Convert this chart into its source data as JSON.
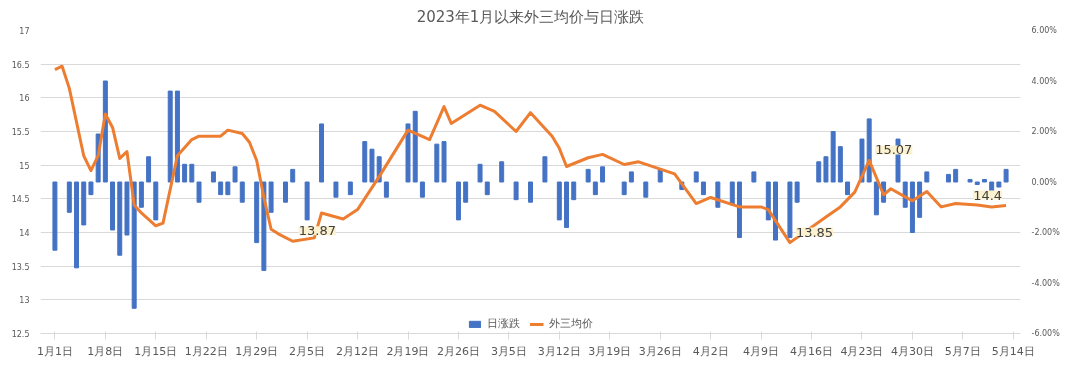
{
  "chart_data": {
    "type": "line",
    "title": "2023年1月以来外三均价与日涨跌",
    "xlim": [
      "2022-12-30",
      "2023-05-15"
    ],
    "xticks": [
      {
        "value": "2023-01-01",
        "label": "1月1日"
      },
      {
        "value": "2023-01-08",
        "label": "1月8日"
      },
      {
        "value": "2023-01-15",
        "label": "1月15日"
      },
      {
        "value": "2023-01-22",
        "label": "1月22日"
      },
      {
        "value": "2023-01-29",
        "label": "1月29日"
      },
      {
        "value": "2023-02-05",
        "label": "2月5日"
      },
      {
        "value": "2023-02-12",
        "label": "2月12日"
      },
      {
        "value": "2023-02-19",
        "label": "2月19日"
      },
      {
        "value": "2023-02-26",
        "label": "2月26日"
      },
      {
        "value": "2023-03-05",
        "label": "3月5日"
      },
      {
        "value": "2023-03-12",
        "label": "3月12日"
      },
      {
        "value": "2023-03-19",
        "label": "3月19日"
      },
      {
        "value": "2023-03-26",
        "label": "3月26日"
      },
      {
        "value": "2023-04-02",
        "label": "4月2日"
      },
      {
        "value": "2023-04-09",
        "label": "4月9日"
      },
      {
        "value": "2023-04-16",
        "label": "4月16日"
      },
      {
        "value": "2023-04-23",
        "label": "4月23日"
      },
      {
        "value": "2023-04-30",
        "label": "4月30日"
      },
      {
        "value": "2023-05-07",
        "label": "5月7日"
      },
      {
        "value": "2023-05-14",
        "label": "5月14日"
      }
    ],
    "ylim": [
      12.5,
      17
    ],
    "yticks": [
      12.5,
      13,
      13.5,
      14,
      14.5,
      15,
      15.5,
      16,
      16.5,
      17
    ],
    "y2lim": [
      -6,
      6
    ],
    "y2ticks": [
      {
        "value": -6,
        "label": "-6.00%"
      },
      {
        "value": -4,
        "label": "-4.00%"
      },
      {
        "value": -2,
        "label": "-2.00%"
      },
      {
        "value": 0,
        "label": "0.00%"
      },
      {
        "value": 2,
        "label": "2.00%"
      },
      {
        "value": 4,
        "label": "4.00%"
      },
      {
        "value": 6,
        "label": "6.00%"
      }
    ],
    "grid": "y",
    "legend": "bottom",
    "series": [
      {
        "name": "日涨跌",
        "type": "bar",
        "axis": "y2",
        "color": "#4472c4",
        "x": [
          "2023-01-01",
          "2023-01-03",
          "2023-01-04",
          "2023-01-05",
          "2023-01-06",
          "2023-01-07",
          "2023-01-08",
          "2023-01-09",
          "2023-01-10",
          "2023-01-11",
          "2023-01-12",
          "2023-01-13",
          "2023-01-14",
          "2023-01-15",
          "2023-01-17",
          "2023-01-18",
          "2023-01-19",
          "2023-01-20",
          "2023-01-21",
          "2023-01-23",
          "2023-01-24",
          "2023-01-25",
          "2023-01-26",
          "2023-01-27",
          "2023-01-29",
          "2023-01-30",
          "2023-01-31",
          "2023-02-02",
          "2023-02-03",
          "2023-02-05",
          "2023-02-07",
          "2023-02-09",
          "2023-02-11",
          "2023-02-13",
          "2023-02-14",
          "2023-02-15",
          "2023-02-16",
          "2023-02-19",
          "2023-02-20",
          "2023-02-21",
          "2023-02-23",
          "2023-02-24",
          "2023-02-26",
          "2023-02-27",
          "2023-03-01",
          "2023-03-02",
          "2023-03-04",
          "2023-03-06",
          "2023-03-08",
          "2023-03-10",
          "2023-03-12",
          "2023-03-13",
          "2023-03-14",
          "2023-03-16",
          "2023-03-17",
          "2023-03-18",
          "2023-03-21",
          "2023-03-22",
          "2023-03-24",
          "2023-03-26",
          "2023-03-29",
          "2023-03-31",
          "2023-04-01",
          "2023-04-03",
          "2023-04-05",
          "2023-04-06",
          "2023-04-08",
          "2023-04-10",
          "2023-04-11",
          "2023-04-13",
          "2023-04-14",
          "2023-04-17",
          "2023-04-18",
          "2023-04-19",
          "2023-04-20",
          "2023-04-21",
          "2023-04-23",
          "2023-04-24",
          "2023-04-25",
          "2023-04-26",
          "2023-04-28",
          "2023-04-29",
          "2023-04-30",
          "2023-05-01",
          "2023-05-02",
          "2023-05-05",
          "2023-05-06",
          "2023-05-08",
          "2023-05-09",
          "2023-05-10",
          "2023-05-11",
          "2023-05-12",
          "2023-05-13"
        ],
        "values": [
          -2.7,
          -1.2,
          -3.4,
          -1.7,
          -0.5,
          1.9,
          4.0,
          -1.9,
          -2.9,
          -2.1,
          -5.0,
          -1.0,
          1.0,
          -1.5,
          3.6,
          3.6,
          0.7,
          0.7,
          -0.8,
          0.4,
          -0.5,
          -0.5,
          0.6,
          -0.8,
          -2.4,
          -3.5,
          -1.2,
          -0.8,
          0.5,
          -1.5,
          2.3,
          -0.6,
          -0.5,
          1.6,
          1.3,
          1.0,
          -0.6,
          2.3,
          2.8,
          -0.6,
          1.5,
          1.6,
          -1.5,
          -0.8,
          0.7,
          -0.5,
          0.8,
          -0.7,
          -0.8,
          1.0,
          -1.5,
          -1.8,
          -0.7,
          0.5,
          -0.5,
          0.6,
          -0.5,
          0.4,
          -0.6,
          0.5,
          -0.3,
          0.4,
          -0.5,
          -1.0,
          -0.9,
          -2.2,
          0.4,
          -1.5,
          -2.3,
          -2.2,
          -0.8,
          0.8,
          1.0,
          2.0,
          1.4,
          -0.5,
          1.7,
          2.5,
          -1.3,
          -0.8,
          1.7,
          -1.0,
          -2.0,
          -1.4,
          0.4,
          0.3,
          0.5,
          0.1,
          -0.1,
          0.1,
          -0.4,
          -0.2,
          0.5
        ]
      },
      {
        "name": "外三均价",
        "color": "#ed7d31",
        "x": [
          "2023-01-01",
          "2023-01-02",
          "2023-01-03",
          "2023-01-05",
          "2023-01-06",
          "2023-01-07",
          "2023-01-08",
          "2023-01-09",
          "2023-01-10",
          "2023-01-11",
          "2023-01-12",
          "2023-01-13",
          "2023-01-15",
          "2023-01-16",
          "2023-01-18",
          "2023-01-20",
          "2023-01-21",
          "2023-01-24",
          "2023-01-25",
          "2023-01-27",
          "2023-01-28",
          "2023-01-29",
          "2023-01-30",
          "2023-01-31",
          "2023-02-01",
          "2023-02-03",
          "2023-02-06",
          "2023-02-07",
          "2023-02-10",
          "2023-02-12",
          "2023-02-15",
          "2023-02-19",
          "2023-02-22",
          "2023-02-24",
          "2023-02-25",
          "2023-03-01",
          "2023-03-03",
          "2023-03-06",
          "2023-03-08",
          "2023-03-11",
          "2023-03-12",
          "2023-03-13",
          "2023-03-16",
          "2023-03-18",
          "2023-03-21",
          "2023-03-23",
          "2023-03-28",
          "2023-03-31",
          "2023-04-02",
          "2023-04-06",
          "2023-04-09",
          "2023-04-10",
          "2023-04-13",
          "2023-04-18",
          "2023-04-20",
          "2023-04-22",
          "2023-04-24",
          "2023-04-26",
          "2023-04-27",
          "2023-04-30",
          "2023-05-02",
          "2023-05-04",
          "2023-05-06",
          "2023-05-09",
          "2023-05-11",
          "2023-05-13"
        ],
        "values": [
          16.42,
          16.47,
          16.14,
          15.14,
          14.92,
          15.14,
          15.76,
          15.56,
          15.1,
          15.2,
          14.41,
          14.29,
          14.1,
          14.14,
          15.14,
          15.38,
          15.43,
          15.43,
          15.52,
          15.47,
          15.34,
          15.07,
          14.52,
          14.05,
          13.98,
          13.87,
          13.92,
          14.29,
          14.2,
          14.34,
          14.83,
          15.52,
          15.38,
          15.87,
          15.62,
          15.89,
          15.8,
          15.5,
          15.78,
          15.43,
          15.25,
          14.98,
          15.11,
          15.16,
          15.01,
          15.05,
          14.87,
          14.43,
          14.52,
          14.38,
          14.38,
          14.34,
          13.85,
          14.23,
          14.38,
          14.6,
          15.07,
          14.56,
          14.65,
          14.47,
          14.61,
          14.38,
          14.43,
          14.41,
          14.38,
          14.4
        ],
        "value_labels": [
          null,
          null,
          null,
          null,
          null,
          null,
          null,
          null,
          null,
          null,
          null,
          null,
          null,
          null,
          null,
          null,
          null,
          null,
          null,
          null,
          null,
          null,
          null,
          null,
          null,
          "13.87",
          null,
          null,
          null,
          null,
          null,
          null,
          null,
          null,
          null,
          null,
          null,
          null,
          null,
          null,
          null,
          null,
          null,
          null,
          null,
          null,
          null,
          null,
          null,
          null,
          null,
          null,
          "13.85",
          null,
          null,
          null,
          "15.07",
          null,
          null,
          null,
          null,
          null,
          null,
          null,
          null,
          "14.4"
        ]
      }
    ]
  }
}
